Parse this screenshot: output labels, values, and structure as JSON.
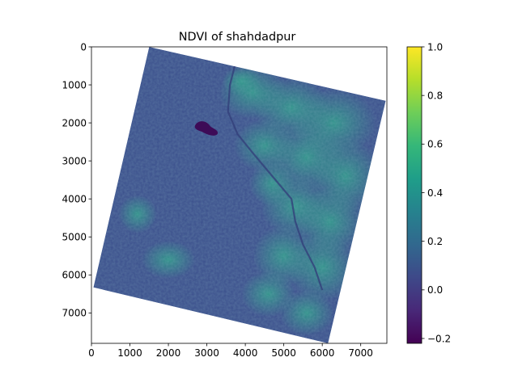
{
  "chart_data": {
    "type": "heatmap",
    "title": "NDVI of shahdadpur",
    "xlabel": "",
    "ylabel": "",
    "xlim": [
      0,
      7680
    ],
    "ylim": [
      7800,
      0
    ],
    "x_ticks": [
      0,
      1000,
      2000,
      3000,
      4000,
      5000,
      6000,
      7000
    ],
    "y_ticks": [
      0,
      1000,
      2000,
      3000,
      4000,
      5000,
      6000,
      7000
    ],
    "x_tick_labels": [
      "0",
      "1000",
      "2000",
      "3000",
      "4000",
      "5000",
      "6000",
      "7000"
    ],
    "y_tick_labels": [
      "0",
      "1000",
      "2000",
      "3000",
      "4000",
      "5000",
      "6000",
      "7000"
    ],
    "grid": false,
    "colormap": "viridis",
    "colorbar": {
      "range": [
        -0.22,
        1.0
      ],
      "ticks": [
        -0.2,
        0.0,
        0.2,
        0.4,
        0.6,
        0.8,
        1.0
      ],
      "tick_labels": [
        "−0.2",
        "0.0",
        "0.2",
        "0.4",
        "0.6",
        "0.8",
        "1.0"
      ]
    },
    "scene_footprint_corners": [
      {
        "x": 1500,
        "y": 0
      },
      {
        "x": 7650,
        "y": 1420
      },
      {
        "x": 6150,
        "y": 7800
      },
      {
        "x": 50,
        "y": 6330
      }
    ],
    "typical_values": {
      "background": 0.05,
      "vegetated_east": 0.3,
      "water_body": -0.2
    },
    "features": [
      {
        "name": "water_body",
        "x": 2980,
        "y": 2150,
        "value": -0.2
      }
    ]
  },
  "colors": {
    "viridis_stops": [
      "#440154",
      "#482878",
      "#3e4989",
      "#31688e",
      "#26828e",
      "#1f9e89",
      "#35b779",
      "#6ece58",
      "#b5de2b",
      "#fde725"
    ],
    "background_pixel": "#3b4f8c",
    "vegetation_pixel": "#2a8a8c",
    "water_pixel": "#3d0b57"
  }
}
